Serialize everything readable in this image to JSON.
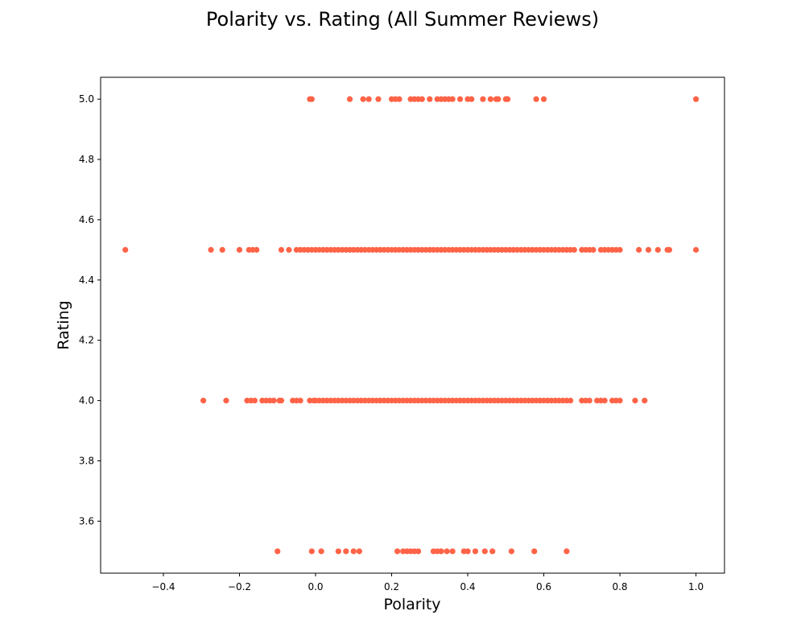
{
  "chart_data": {
    "type": "scatter",
    "title": "Polarity vs. Rating (All Summer Reviews)",
    "xlabel": "Polarity",
    "ylabel": "Rating",
    "xlim": [
      -0.565,
      1.075
    ],
    "ylim": [
      3.4275,
      5.0725
    ],
    "x_ticks": [
      -0.4,
      -0.2,
      0.0,
      0.2,
      0.4,
      0.6,
      0.8,
      1.0
    ],
    "x_tick_labels": [
      "−0.4",
      "−0.2",
      "0.0",
      "0.2",
      "0.4",
      "0.6",
      "0.8",
      "1.0"
    ],
    "y_ticks": [
      3.6,
      3.8,
      4.0,
      4.2,
      4.4,
      4.6,
      4.8,
      5.0
    ],
    "y_tick_labels": [
      "3.6",
      "3.8",
      "4.0",
      "4.2",
      "4.4",
      "4.6",
      "4.8",
      "5.0"
    ],
    "grid": false,
    "marker_color": "#ff6347",
    "series": [
      {
        "points_by_rating": [
          {
            "y": 5.0,
            "x": [
              -0.015,
              -0.01,
              0.09,
              0.125,
              0.14,
              0.165,
              0.2,
              0.21,
              0.22,
              0.25,
              0.26,
              0.27,
              0.28,
              0.3,
              0.32,
              0.33,
              0.34,
              0.35,
              0.36,
              0.38,
              0.4,
              0.41,
              0.44,
              0.46,
              0.475,
              0.48,
              0.5,
              0.505,
              0.58,
              0.6,
              1.0
            ]
          },
          {
            "y": 4.5,
            "x": [
              -0.5,
              -0.275,
              -0.245,
              -0.2,
              -0.175,
              -0.165,
              -0.155,
              -0.09,
              -0.07,
              -0.05,
              -0.04,
              -0.03,
              -0.02,
              -0.01,
              0.0,
              0.01,
              0.02,
              0.03,
              0.04,
              0.05,
              0.06,
              0.07,
              0.08,
              0.09,
              0.1,
              0.11,
              0.12,
              0.13,
              0.14,
              0.15,
              0.16,
              0.17,
              0.18,
              0.19,
              0.2,
              0.21,
              0.22,
              0.23,
              0.24,
              0.25,
              0.26,
              0.27,
              0.28,
              0.29,
              0.3,
              0.31,
              0.32,
              0.33,
              0.34,
              0.35,
              0.36,
              0.37,
              0.38,
              0.39,
              0.4,
              0.41,
              0.42,
              0.43,
              0.44,
              0.45,
              0.46,
              0.47,
              0.48,
              0.49,
              0.5,
              0.51,
              0.52,
              0.53,
              0.54,
              0.55,
              0.56,
              0.57,
              0.58,
              0.59,
              0.6,
              0.61,
              0.62,
              0.63,
              0.64,
              0.65,
              0.66,
              0.67,
              0.68,
              0.7,
              0.71,
              0.72,
              0.73,
              0.75,
              0.76,
              0.77,
              0.78,
              0.79,
              0.8,
              0.85,
              0.875,
              0.9,
              0.925,
              0.93,
              1.0
            ]
          },
          {
            "y": 4.0,
            "x": [
              -0.295,
              -0.235,
              -0.18,
              -0.17,
              -0.16,
              -0.14,
              -0.13,
              -0.12,
              -0.11,
              -0.095,
              -0.09,
              -0.06,
              -0.05,
              -0.04,
              -0.015,
              -0.005,
              0.0,
              0.01,
              0.02,
              0.03,
              0.04,
              0.05,
              0.06,
              0.07,
              0.08,
              0.09,
              0.1,
              0.11,
              0.12,
              0.13,
              0.14,
              0.15,
              0.16,
              0.17,
              0.18,
              0.19,
              0.2,
              0.21,
              0.22,
              0.23,
              0.24,
              0.25,
              0.26,
              0.27,
              0.28,
              0.29,
              0.3,
              0.31,
              0.32,
              0.33,
              0.34,
              0.35,
              0.36,
              0.37,
              0.38,
              0.39,
              0.4,
              0.41,
              0.42,
              0.43,
              0.44,
              0.45,
              0.46,
              0.47,
              0.48,
              0.49,
              0.5,
              0.51,
              0.52,
              0.53,
              0.54,
              0.55,
              0.56,
              0.57,
              0.58,
              0.59,
              0.6,
              0.61,
              0.62,
              0.63,
              0.64,
              0.65,
              0.66,
              0.67,
              0.7,
              0.71,
              0.72,
              0.74,
              0.75,
              0.76,
              0.78,
              0.79,
              0.8,
              0.84,
              0.865
            ]
          },
          {
            "y": 3.5,
            "x": [
              -0.1,
              -0.01,
              0.015,
              0.06,
              0.08,
              0.1,
              0.115,
              0.215,
              0.23,
              0.24,
              0.25,
              0.26,
              0.27,
              0.31,
              0.32,
              0.33,
              0.345,
              0.36,
              0.39,
              0.4,
              0.42,
              0.445,
              0.465,
              0.515,
              0.575,
              0.66
            ]
          }
        ]
      }
    ]
  }
}
